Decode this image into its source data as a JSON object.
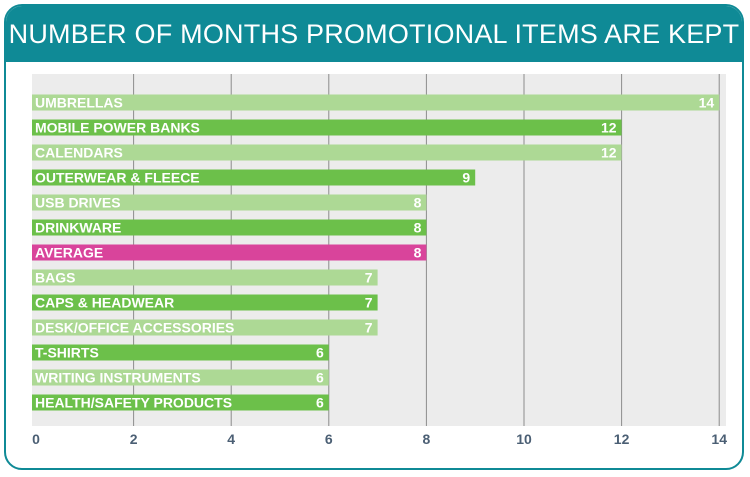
{
  "title": "NUMBER OF MONTHS PROMOTIONAL ITEMS ARE KEPT",
  "colors": {
    "header": "#0f8a96",
    "plot_bg": "#ececec",
    "gridline": "#8c8c8c",
    "bar_dark": "#6cc04a",
    "bar_light": "#add995",
    "bar_average": "#d9449b",
    "tick_text": "#4b5f74"
  },
  "chart_data": {
    "type": "bar",
    "orientation": "horizontal",
    "title": "NUMBER OF MONTHS PROMOTIONAL ITEMS ARE KEPT",
    "categories": [
      "UMBRELLAS",
      "MOBILE POWER BANKS",
      "CALENDARS",
      "OUTERWEAR & FLEECE",
      "USB DRIVES",
      "DRINKWARE",
      "AVERAGE",
      "BAGS",
      "CAPS & HEADWEAR",
      "DESK/OFFICE ACCESSORIES",
      "T-SHIRTS",
      "WRITING INSTRUMENTS",
      "HEALTH/SAFETY PRODUCTS"
    ],
    "values": [
      14,
      12,
      12,
      9,
      8,
      8,
      8,
      7,
      7,
      7,
      6,
      6,
      6
    ],
    "bar_styles": [
      "light",
      "dark",
      "light",
      "dark",
      "light",
      "dark",
      "average",
      "light",
      "dark",
      "light",
      "dark",
      "light",
      "dark"
    ],
    "xlim": [
      0,
      14
    ],
    "xticks": [
      0,
      2,
      4,
      6,
      8,
      10,
      12,
      14
    ],
    "grid": true,
    "legend": "none",
    "xlabel": "",
    "ylabel": ""
  }
}
